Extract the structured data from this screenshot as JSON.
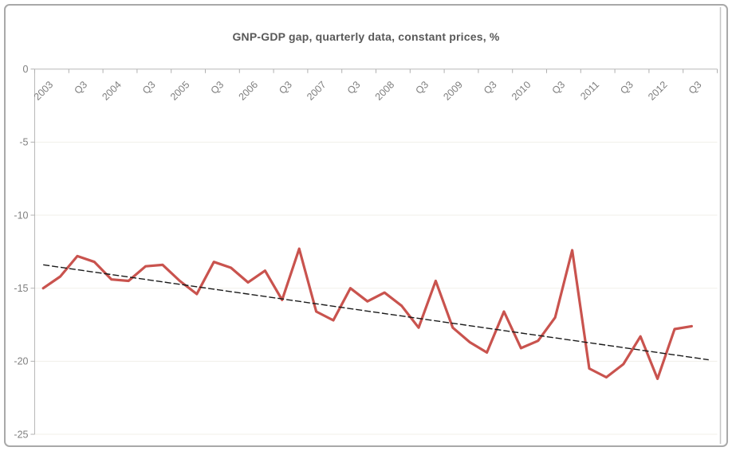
{
  "window": {
    "kind": "chart-screenshot"
  },
  "chart_data": {
    "type": "line",
    "title": "GNP-GDP gap, quarterly data, constant prices, %",
    "xlabel": "",
    "ylabel": "",
    "ylim": [
      -25,
      0
    ],
    "y_ticks": [
      0,
      -5,
      -10,
      -15,
      -20,
      -25
    ],
    "grid": "horizontal-faint",
    "legend": "none",
    "x_axis_position": "top-at-zero",
    "x_tick_labels": [
      "2003",
      "Q3",
      "2004",
      "Q3",
      "2005",
      "Q3",
      "2006",
      "Q3",
      "2007",
      "Q3",
      "2008",
      "Q3",
      "2009",
      "Q3",
      "2010",
      "Q3",
      "2011",
      "Q3",
      "2012",
      "Q3"
    ],
    "x_label_every": 2,
    "n_slots": 40,
    "categories": [
      "2003 Q1",
      "2003 Q2",
      "2003 Q3",
      "2003 Q4",
      "2004 Q1",
      "2004 Q2",
      "2004 Q3",
      "2004 Q4",
      "2005 Q1",
      "2005 Q2",
      "2005 Q3",
      "2005 Q4",
      "2006 Q1",
      "2006 Q2",
      "2006 Q3",
      "2006 Q4",
      "2007 Q1",
      "2007 Q2",
      "2007 Q3",
      "2007 Q4",
      "2008 Q1",
      "2008 Q2",
      "2008 Q3",
      "2008 Q4",
      "2009 Q1",
      "2009 Q2",
      "2009 Q3",
      "2009 Q4",
      "2010 Q1",
      "2010 Q2",
      "2010 Q3",
      "2010 Q4",
      "2011 Q1",
      "2011 Q2",
      "2011 Q3",
      "2011 Q4",
      "2012 Q1",
      "2012 Q2",
      "2012 Q3"
    ],
    "series": [
      {
        "name": "GNP-GDP gap",
        "color": "#c9534e",
        "style": "solid",
        "values": [
          -15.0,
          -14.2,
          -12.8,
          -13.2,
          -14.4,
          -14.5,
          -13.5,
          -13.4,
          -14.5,
          -15.4,
          -13.2,
          -13.6,
          -14.6,
          -13.8,
          -15.8,
          -12.3,
          -16.6,
          -17.2,
          -15.0,
          -15.9,
          -15.3,
          -16.2,
          -17.7,
          -14.5,
          -17.7,
          -18.7,
          -19.4,
          -16.6,
          -19.1,
          -18.6,
          -17.0,
          -12.4,
          -20.5,
          -21.1,
          -20.2,
          -18.3,
          -21.2,
          -17.8,
          -17.6
        ]
      },
      {
        "name": "Linear trend",
        "color": "#1a1a1a",
        "style": "dashed",
        "trend": {
          "start_value": -13.4,
          "end_value": -19.9,
          "start_index": 0,
          "end_index": 39
        }
      }
    ]
  },
  "colors": {
    "axis": "#b8b8b8",
    "tick": "#b0b0b0",
    "gridline": "#f1efe9",
    "tick_label": "#7f7f7f",
    "title": "#595959",
    "frame": "#a9a9a9",
    "inner_right_edge": "#c6c6c6"
  }
}
